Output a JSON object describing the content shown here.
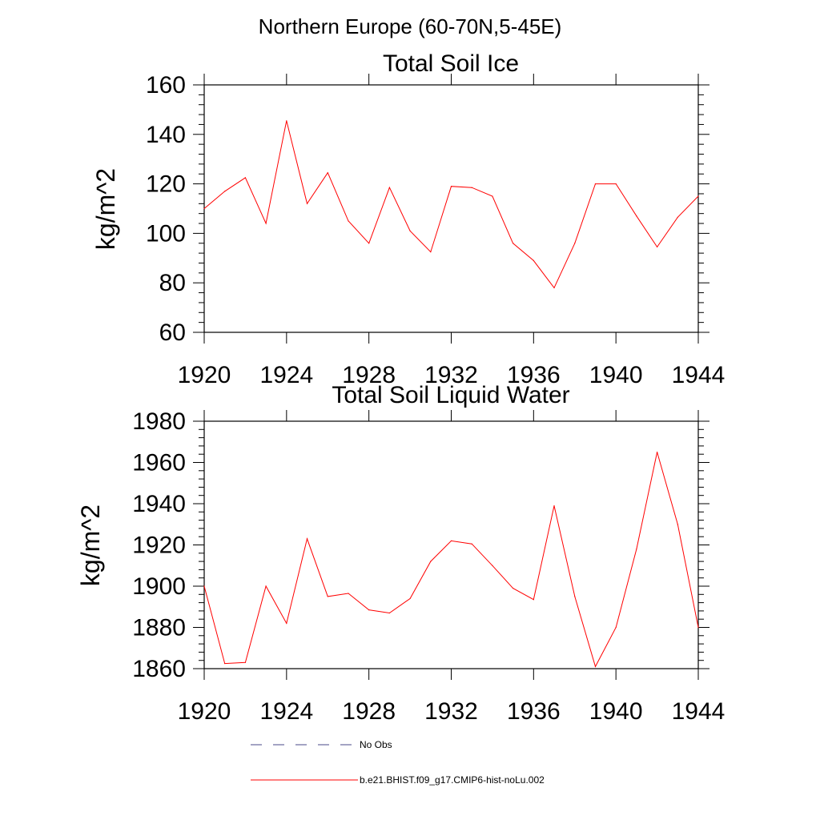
{
  "figure": {
    "suptitle": "Northern Europe (60-70N,5-45E)"
  },
  "colors": {
    "model": "#ff0000",
    "obs": "#4a4a8a",
    "axis": "#000000"
  },
  "legend": {
    "placement": "bottom",
    "entries": [
      {
        "label": "No Obs",
        "style": "dashed",
        "color": "#4a4a8a"
      },
      {
        "label": "b.e21.BHIST.f09_g17.CMIP6-hist-noLu.002",
        "style": "solid",
        "color": "#ff0000"
      }
    ]
  },
  "chart_data": [
    {
      "type": "line",
      "title": "Total Soil Ice",
      "xlabel": "",
      "ylabel": "kg/m^2",
      "xlim": [
        1920,
        1944
      ],
      "ylim": [
        60,
        160
      ],
      "xticks": [
        1920,
        1924,
        1928,
        1932,
        1936,
        1940,
        1944
      ],
      "yticks": [
        60,
        80,
        100,
        120,
        140,
        160
      ],
      "grid": false,
      "x": [
        1920,
        1921,
        1922,
        1923,
        1924,
        1925,
        1926,
        1927,
        1928,
        1929,
        1930,
        1931,
        1932,
        1933,
        1934,
        1935,
        1936,
        1937,
        1938,
        1939,
        1940,
        1941,
        1942,
        1943,
        1944
      ],
      "series": [
        {
          "name": "b.e21.BHIST.f09_g17.CMIP6-hist-noLu.002",
          "color": "#ff0000",
          "values": [
            110,
            117,
            122.5,
            104,
            145.5,
            112,
            124.5,
            105,
            96,
            118.5,
            101,
            92.5,
            119,
            118.5,
            115,
            96,
            89,
            78,
            96,
            120,
            120,
            107,
            94.5,
            106.5,
            115
          ]
        }
      ]
    },
    {
      "type": "line",
      "title": "Total Soil Liquid Water",
      "xlabel": "",
      "ylabel": "kg/m^2",
      "xlim": [
        1920,
        1944
      ],
      "ylim": [
        1860,
        1980
      ],
      "xticks": [
        1920,
        1924,
        1928,
        1932,
        1936,
        1940,
        1944
      ],
      "yticks": [
        1860,
        1880,
        1900,
        1920,
        1940,
        1960,
        1980
      ],
      "grid": false,
      "x": [
        1920,
        1921,
        1922,
        1923,
        1924,
        1925,
        1926,
        1927,
        1928,
        1929,
        1930,
        1931,
        1932,
        1933,
        1934,
        1935,
        1936,
        1937,
        1938,
        1939,
        1940,
        1941,
        1942,
        1943,
        1944
      ],
      "series": [
        {
          "name": "b.e21.BHIST.f09_g17.CMIP6-hist-noLu.002",
          "color": "#ff0000",
          "values": [
            1900,
            1862.5,
            1863,
            1900,
            1882,
            1923,
            1895,
            1896.5,
            1888.5,
            1887,
            1894,
            1912,
            1922,
            1920.5,
            1910,
            1899,
            1893.5,
            1939,
            1895,
            1861,
            1880,
            1918,
            1965,
            1930,
            1880
          ]
        }
      ]
    }
  ]
}
